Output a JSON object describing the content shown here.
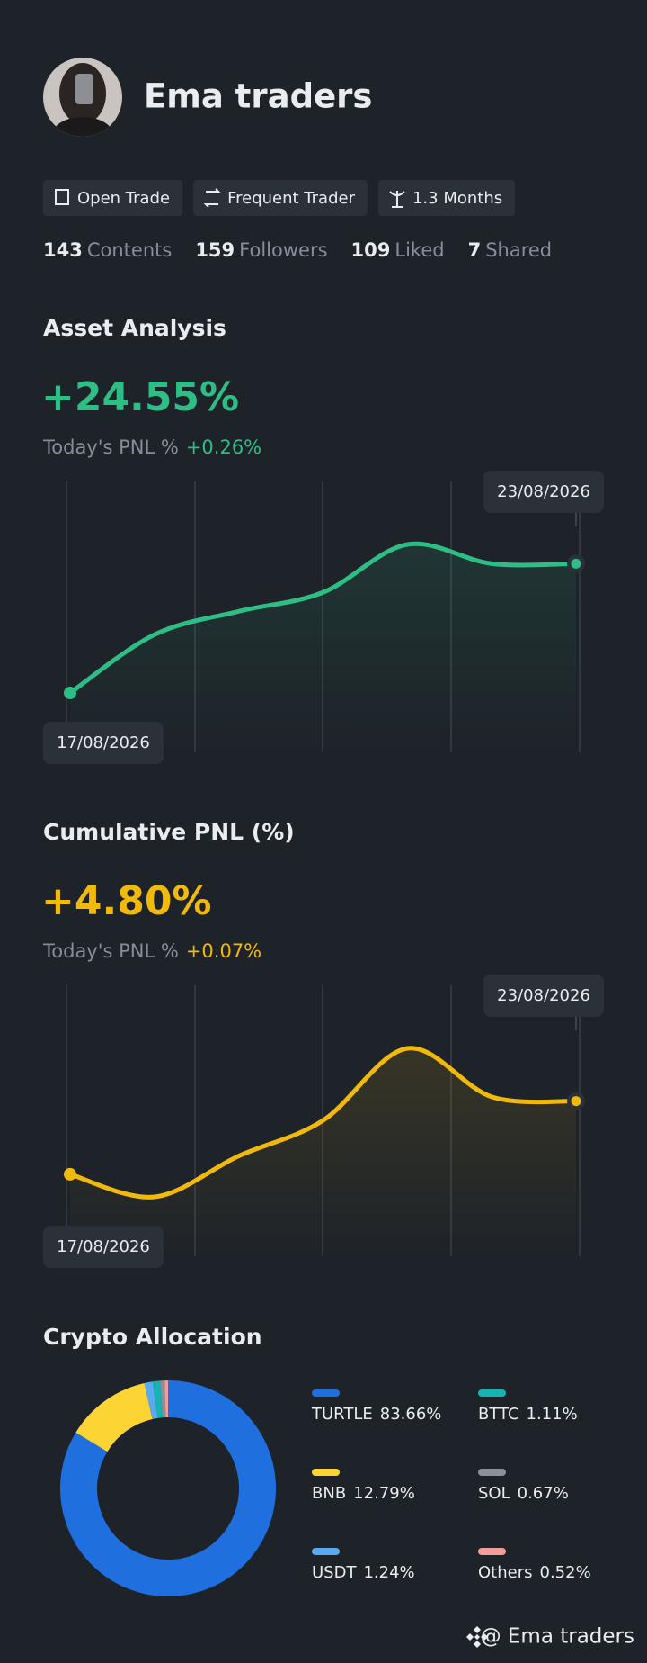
{
  "profile": {
    "name": "Ema traders",
    "badges": [
      "Open Trade",
      "Frequent Trader",
      "1.3 Months"
    ],
    "stats": [
      {
        "value": 143,
        "label": "Contents"
      },
      {
        "value": 159,
        "label": "Followers"
      },
      {
        "value": 109,
        "label": "Liked"
      },
      {
        "value": 7,
        "label": "Shared"
      }
    ]
  },
  "chart_data": [
    {
      "type": "line",
      "title": "Asset Analysis",
      "headline": "+24.55%",
      "pnl_label": "Today's PNL %",
      "pnl_value": "+0.26%",
      "categories": [
        "17/08/2026",
        null,
        null,
        null,
        null,
        null,
        "23/08/2026"
      ],
      "color": "#2ebd85",
      "values": [
        0,
        11.07,
        15.5,
        19.1,
        28.2,
        24.55,
        24.55
      ]
    },
    {
      "type": "line",
      "title": "Cumulative PNL (%)",
      "headline": "+4.80%",
      "pnl_label": "Today's PNL %",
      "pnl_value": "+0.07%",
      "categories": [
        "17/08/2026",
        null,
        null,
        null,
        null,
        null,
        "23/08/2026"
      ],
      "color": "#f0b90b",
      "values": [
        0,
        -1.48,
        1.2,
        3.53,
        8.26,
        5.08,
        4.8
      ]
    },
    {
      "type": "pie",
      "title": "Crypto Allocation",
      "categories": [
        "TURTLE",
        "BNB",
        "USDT",
        "BTTC",
        "SOL",
        "Others"
      ],
      "values": [
        83.66,
        12.79,
        1.24,
        1.11,
        0.67,
        0.52
      ],
      "value_labels": [
        "83.66%",
        "12.79%",
        "1.24%",
        "1.11%",
        "0.67%",
        "0.52%"
      ],
      "colors": [
        "#1f6fde",
        "#fcd535",
        "#5aaaf2",
        "#16b4b0",
        "#8b9099",
        "#f29c9c"
      ]
    }
  ],
  "footer": "@ Ema traders"
}
